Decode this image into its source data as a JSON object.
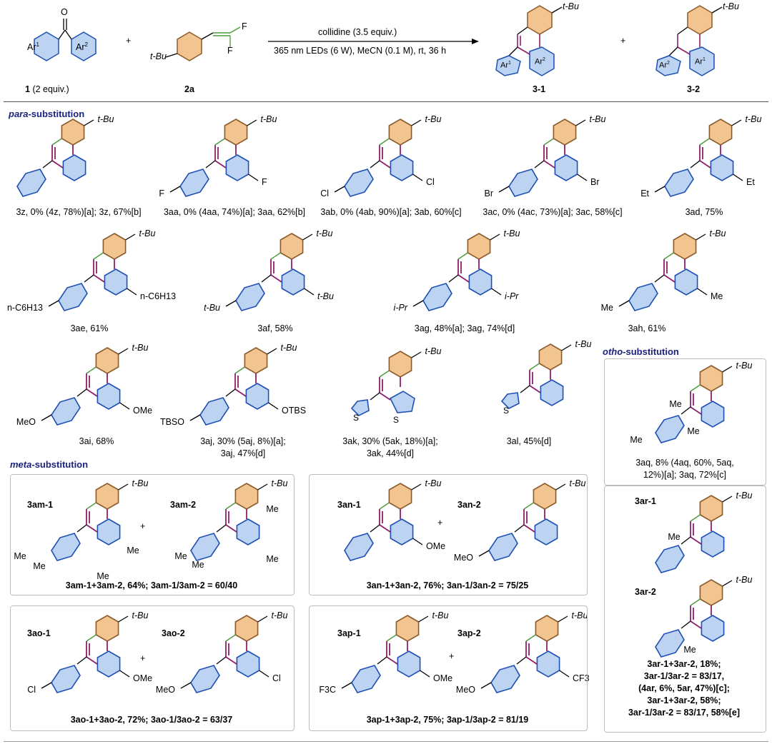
{
  "scheme": {
    "reactant1_label": "1",
    "reactant1_note": "(2 equiv.)",
    "reactant2_label": "2a",
    "ar1": "Ar",
    "ar2": "Ar",
    "ar_sup1": "1",
    "ar_sup2": "2",
    "conditions_top": "collidine (3.5 equiv.)",
    "conditions_bottom": "365 nm LEDs (6 W), MeCN (0.1 M), rt, 36 h",
    "plus": "+",
    "product1_label": "3-1",
    "product2_label": "3-2",
    "tbu": "t-Bu",
    "F": "F"
  },
  "sections": {
    "para": "para",
    "para_rest": "-substitution",
    "meta": "meta",
    "meta_rest": "-substitution",
    "ortho": "otho",
    "ortho_rest": "-substitution"
  },
  "compounds": {
    "c3z": "3z, 0% (4z, 78%)[a]; 3z, 67%[b]",
    "c3aa": "3aa, 0% (4aa, 74%)[a]; 3aa, 62%[b]",
    "c3ab": "3ab, 0% (4ab, 90%)[a]; 3ab, 60%[c]",
    "c3ac": "3ac, 0% (4ac, 73%)[a]; 3ac, 58%[c]",
    "c3ad": "3ad, 75%",
    "c3ae": "3ae, 61%",
    "c3af": "3af, 58%",
    "c3ag": "3ag, 48%[a]; 3ag, 74%[d]",
    "c3ah": "3ah, 61%",
    "c3ai": "3ai, 68%",
    "c3aj_1": "3aj, 30% (5aj, 8%)[a];",
    "c3aj_2": "3aj, 47%[d]",
    "c3ak_1": "3ak, 30% (5ak, 18%)[a];",
    "c3ak_2": "3ak, 44%[d]",
    "c3al": "3al, 45%[d]",
    "c3aq_1": "3aq, 8% (4aq, 60%, 5aq,",
    "c3aq_2": "12%)[a]; 3aq, 72%[c]",
    "c3am": "3am-1+3am-2, 64%; 3am-1/3am-2 = 60/40",
    "c3an": "3an-1+3an-2, 76%; 3an-1/3an-2 = 75/25",
    "c3ao": "3ao-1+3ao-2, 72%; 3ao-1/3ao-2 = 63/37",
    "c3ap": "3ap-1+3ap-2, 75%; 3ap-1/3ap-2 = 81/19",
    "c3ar_lines": [
      "3ar-1+3ar-2, 18%;",
      "3ar-1/3ar-2 = 83/17,",
      "(4ar, 6%, 5ar, 47%)[c];",
      "3ar-1+3ar-2, 58%;",
      "3ar-1/3ar-2 = 83/17, 58%[e]"
    ]
  },
  "subst": {
    "F": "F",
    "Cl": "Cl",
    "Br": "Br",
    "Et": "Et",
    "hexyl": "n-C6H13",
    "tBu": "t-Bu",
    "iPr": "i-Pr",
    "Me": "Me",
    "OMe": "OMe",
    "MeO": "MeO",
    "TBSO": "TBSO",
    "OTBS": "OTBS",
    "S": "S",
    "CF3": "CF3",
    "F3C": "F3C"
  },
  "iso_labels": {
    "am1": "3am-1",
    "am2": "3am-2",
    "an1": "3an-1",
    "an2": "3an-2",
    "ao1": "3ao-1",
    "ao2": "3ao-2",
    "ap1": "3ap-1",
    "ap2": "3ap-2",
    "ar1": "3ar-1",
    "ar2": "3ar-2"
  },
  "colors": {
    "brown_ring": "#f2c48f",
    "brown_edge": "#8a5a2b",
    "blue_ring": "#bcd3f2",
    "blue_edge": "#1e50b4",
    "bond_purple": "#8e1f6e",
    "alkene_green": "#4a9a3a",
    "section_text": "#1a237e"
  }
}
